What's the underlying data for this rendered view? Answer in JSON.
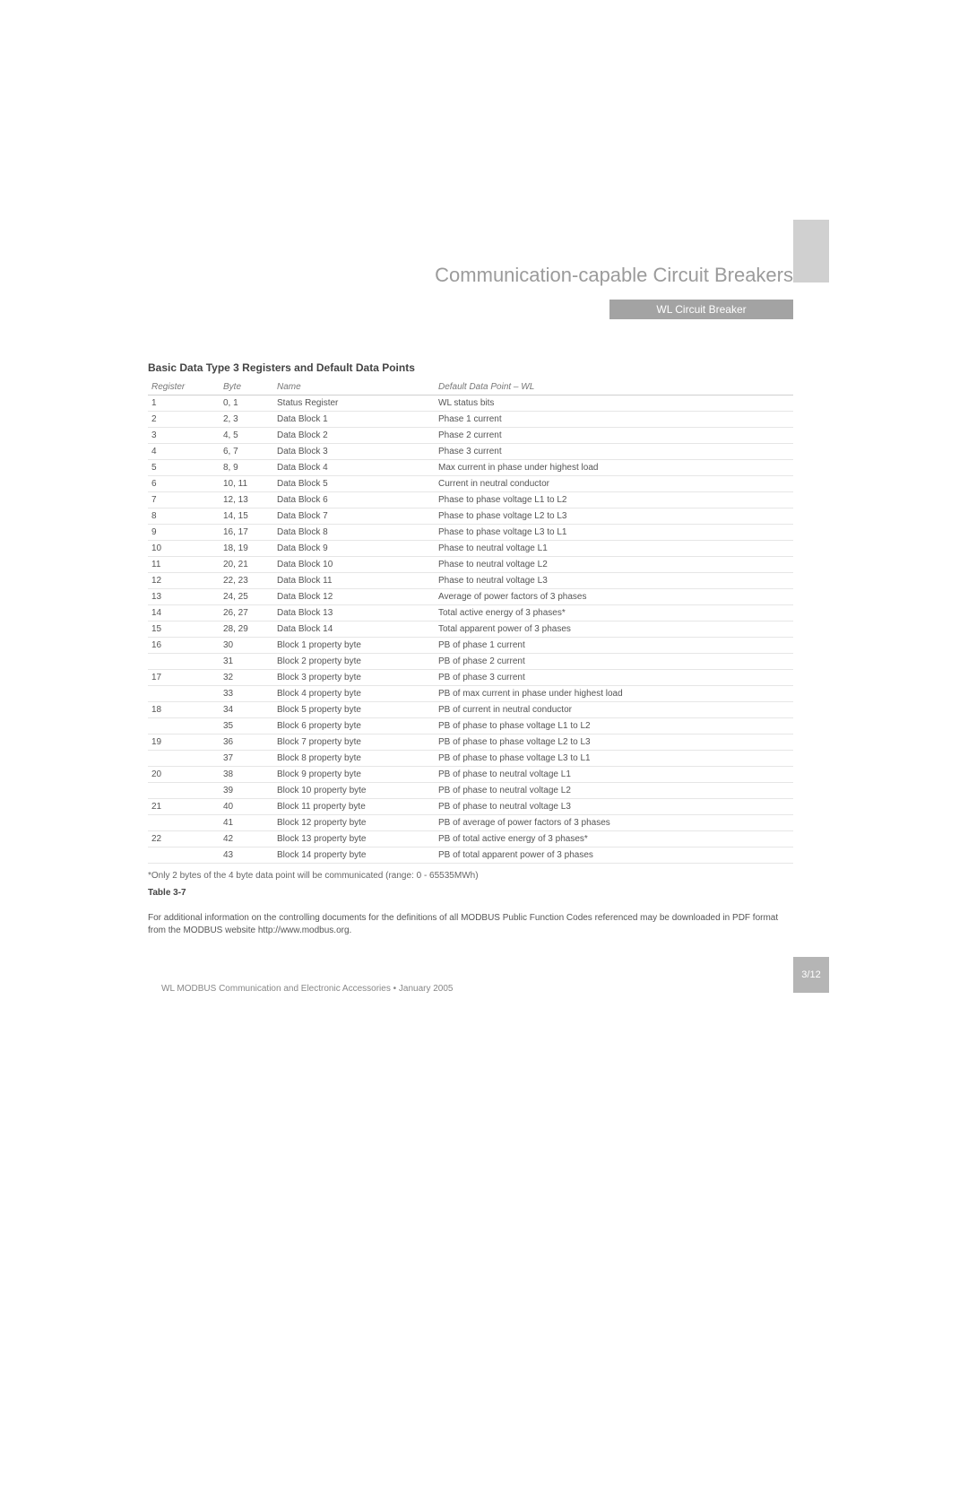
{
  "page": {
    "title": "Communication-capable Circuit Breakers",
    "section": "WL Circuit Breaker",
    "page_number": "3/12",
    "footer": "WL MODBUS Communication and Electronic Accessories • January 2005"
  },
  "table": {
    "title": "Basic Data Type 3 Registers and Default Data Points",
    "columns": [
      "Register",
      "Byte",
      "Name",
      "Default Data Point – WL"
    ],
    "rows": [
      [
        "1",
        "0, 1",
        "Status Register",
        "WL status bits"
      ],
      [
        "2",
        "2, 3",
        "Data Block 1",
        "Phase 1 current"
      ],
      [
        "3",
        "4, 5",
        "Data Block 2",
        "Phase 2 current"
      ],
      [
        "4",
        "6, 7",
        "Data Block 3",
        "Phase 3 current"
      ],
      [
        "5",
        "8, 9",
        "Data Block 4",
        "Max current in phase under highest load"
      ],
      [
        "6",
        "10, 11",
        "Data Block 5",
        "Current in neutral conductor"
      ],
      [
        "7",
        "12, 13",
        "Data Block 6",
        "Phase to phase voltage L1 to L2"
      ],
      [
        "8",
        "14, 15",
        "Data Block 7",
        "Phase to phase voltage L2 to L3"
      ],
      [
        "9",
        "16, 17",
        "Data Block 8",
        "Phase to phase voltage L3 to L1"
      ],
      [
        "10",
        "18, 19",
        "Data Block 9",
        "Phase to neutral voltage L1"
      ],
      [
        "11",
        "20, 21",
        "Data Block 10",
        "Phase to neutral voltage L2"
      ],
      [
        "12",
        "22, 23",
        "Data Block 11",
        "Phase to neutral voltage L3"
      ],
      [
        "13",
        "24, 25",
        "Data Block 12",
        "Average of power factors of 3 phases"
      ],
      [
        "14",
        "26, 27",
        "Data Block 13",
        "Total active energy of 3 phases*"
      ],
      [
        "15",
        "28, 29",
        "Data Block 14",
        "Total apparent power of 3 phases"
      ],
      [
        "16",
        "30",
        "Block 1 property byte",
        "PB of phase 1 current"
      ],
      [
        "",
        "31",
        "Block 2 property byte",
        "PB of phase 2 current"
      ],
      [
        "17",
        "32",
        "Block 3 property byte",
        "PB of phase 3 current"
      ],
      [
        "",
        "33",
        "Block 4 property byte",
        "PB of max current in phase under highest load"
      ],
      [
        "18",
        "34",
        "Block 5 property byte",
        "PB of current in neutral conductor"
      ],
      [
        "",
        "35",
        "Block 6 property byte",
        "PB of phase to phase voltage L1 to L2"
      ],
      [
        "19",
        "36",
        "Block 7 property byte",
        "PB of phase to phase voltage L2 to L3"
      ],
      [
        "",
        "37",
        "Block 8 property byte",
        "PB of phase to phase voltage L3 to L1"
      ],
      [
        "20",
        "38",
        "Block 9 property byte",
        "PB of phase to neutral voltage L1"
      ],
      [
        "",
        "39",
        "Block 10 property byte",
        "PB of phase to neutral voltage L2"
      ],
      [
        "21",
        "40",
        "Block 11 property byte",
        "PB of phase to neutral voltage L3"
      ],
      [
        "",
        "41",
        "Block 12 property byte",
        "PB of average of power factors of 3 phases"
      ],
      [
        "22",
        "42",
        "Block 13 property byte",
        "PB of total active energy of 3 phases*"
      ],
      [
        "",
        "43",
        "Block 14 property byte",
        "PB of total apparent power of 3 phases"
      ]
    ],
    "footnote": "*Only 2 bytes of the 4 byte data point will be communicated (range: 0 - 65535MWh)",
    "label": "Table 3-7",
    "paragraph": "For additional information on the controlling documents for the definitions of all MODBUS Public Function Codes referenced may be downloaded in PDF format from the MODBUS website http://www.modbus.org."
  }
}
